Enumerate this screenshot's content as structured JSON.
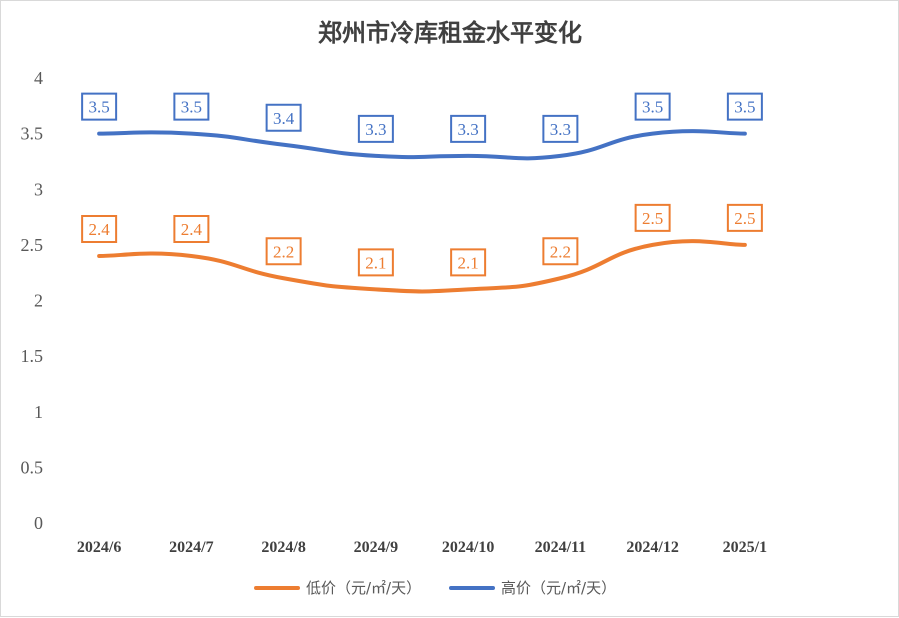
{
  "chart_data": {
    "type": "line",
    "title": "郑州市冷库租金水平变化",
    "categories": [
      "2024/6",
      "2024/7",
      "2024/8",
      "2024/9",
      "2024/10",
      "2024/11",
      "2024/12",
      "2025/1"
    ],
    "yticks": [
      "0",
      "0.5",
      "1",
      "1.5",
      "2",
      "2.5",
      "3",
      "3.5",
      "4"
    ],
    "ylim": [
      0,
      4
    ],
    "grid": false,
    "legend_position": "bottom",
    "series": [
      {
        "name": "低价（元/㎡/天）",
        "color": "#ED7D31",
        "values": [
          2.4,
          2.4,
          2.2,
          2.1,
          2.1,
          2.2,
          2.5,
          2.5
        ],
        "labels": [
          "2.4",
          "2.4",
          "2.2",
          "2.1",
          "2.1",
          "2.2",
          "2.5",
          "2.5"
        ]
      },
      {
        "name": "高价（元/㎡/天）",
        "color": "#4472C4",
        "values": [
          3.5,
          3.5,
          3.4,
          3.3,
          3.3,
          3.3,
          3.5,
          3.5
        ],
        "labels": [
          "3.5",
          "3.5",
          "3.4",
          "3.3",
          "3.3",
          "3.3",
          "3.5",
          "3.5"
        ]
      }
    ]
  }
}
